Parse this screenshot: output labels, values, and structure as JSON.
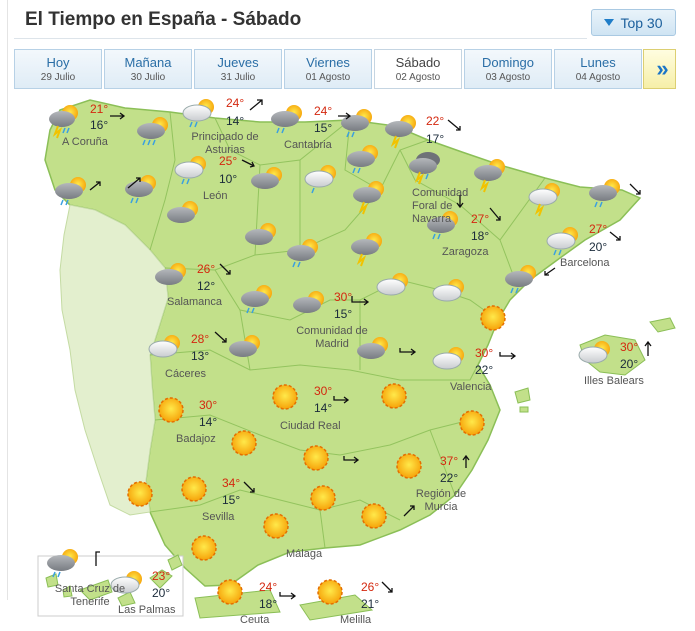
{
  "header": {
    "title": "El Tiempo en España - Sábado",
    "top_label": "Top 30"
  },
  "days": [
    {
      "day": "Hoy",
      "date": "29 Julio"
    },
    {
      "day": "Mañana",
      "date": "30 Julio"
    },
    {
      "day": "Jueves",
      "date": "31 Julio"
    },
    {
      "day": "Viernes",
      "date": "01 Agosto"
    },
    {
      "day": "Sábado",
      "date": "02 Agosto"
    },
    {
      "day": "Domingo",
      "date": "03 Agosto"
    },
    {
      "day": "Lunes",
      "date": "04 Agosto"
    }
  ],
  "next_label": "»",
  "cities": {
    "a_coruna": "A Coruña",
    "asturias": "Principado de Asturias",
    "cantabria": "Cantabria",
    "leon": "León",
    "navarra": "Comunidad Foral de Navarra",
    "zaragoza": "Zaragoza",
    "barcelona": "Barcelona",
    "salamanca": "Salamanca",
    "madrid": "Comunidad de Madrid",
    "caceres": "Cáceres",
    "valencia": "Valencia",
    "baleares": "Illes Balears",
    "badajoz": "Badajoz",
    "ciudad_real": "Ciudad Real",
    "sevilla": "Sevilla",
    "murcia": "Región de Murcia",
    "malaga": "Málaga",
    "tenerife": "Santa Cruz de Tenerife",
    "las_palmas": "Las Palmas",
    "ceuta": "Ceuta",
    "melilla": "Melilla"
  },
  "temps": {
    "a_coruna": {
      "max": "21°",
      "min": "16°"
    },
    "asturias": {
      "max": "24°",
      "min": "14°"
    },
    "cantabria": {
      "max": "24°",
      "min": "15°"
    },
    "navarra": {
      "max": "22°",
      "min": "17°"
    },
    "leon": {
      "max": "25°",
      "min": "10°"
    },
    "zaragoza": {
      "max": "27°",
      "min": "18°"
    },
    "barcelona": {
      "max": "27°",
      "min": "20°"
    },
    "salamanca": {
      "max": "26°",
      "min": "12°"
    },
    "madrid": {
      "max": "30°",
      "min": "15°"
    },
    "caceres": {
      "max": "28°",
      "min": "13°"
    },
    "valencia": {
      "max": "30°",
      "min": "22°"
    },
    "baleares": {
      "max": "30°",
      "min": "20°"
    },
    "badajoz": {
      "max": "30°",
      "min": "14°"
    },
    "ciudad_real": {
      "max": "30°",
      "min": "14°"
    },
    "sevilla": {
      "max": "34°",
      "min": "15°"
    },
    "murcia": {
      "max": "37°",
      "min": "22°"
    },
    "las_palmas": {
      "max": "23°",
      "min": "20°"
    },
    "ceuta": {
      "max": "24°",
      "min": "18°"
    },
    "melilla": {
      "max": "26°",
      "min": "21°"
    }
  },
  "colors": {
    "land": "#c2e08a",
    "land_border": "#8bbf57",
    "temp_max": "#d4280f",
    "link": "#2a6ea6"
  },
  "icons": [
    "storm-cloud-icon",
    "cloud-rain-icon",
    "partly-cloudy-icon",
    "sunny-icon",
    "wind-arrow-icon"
  ]
}
